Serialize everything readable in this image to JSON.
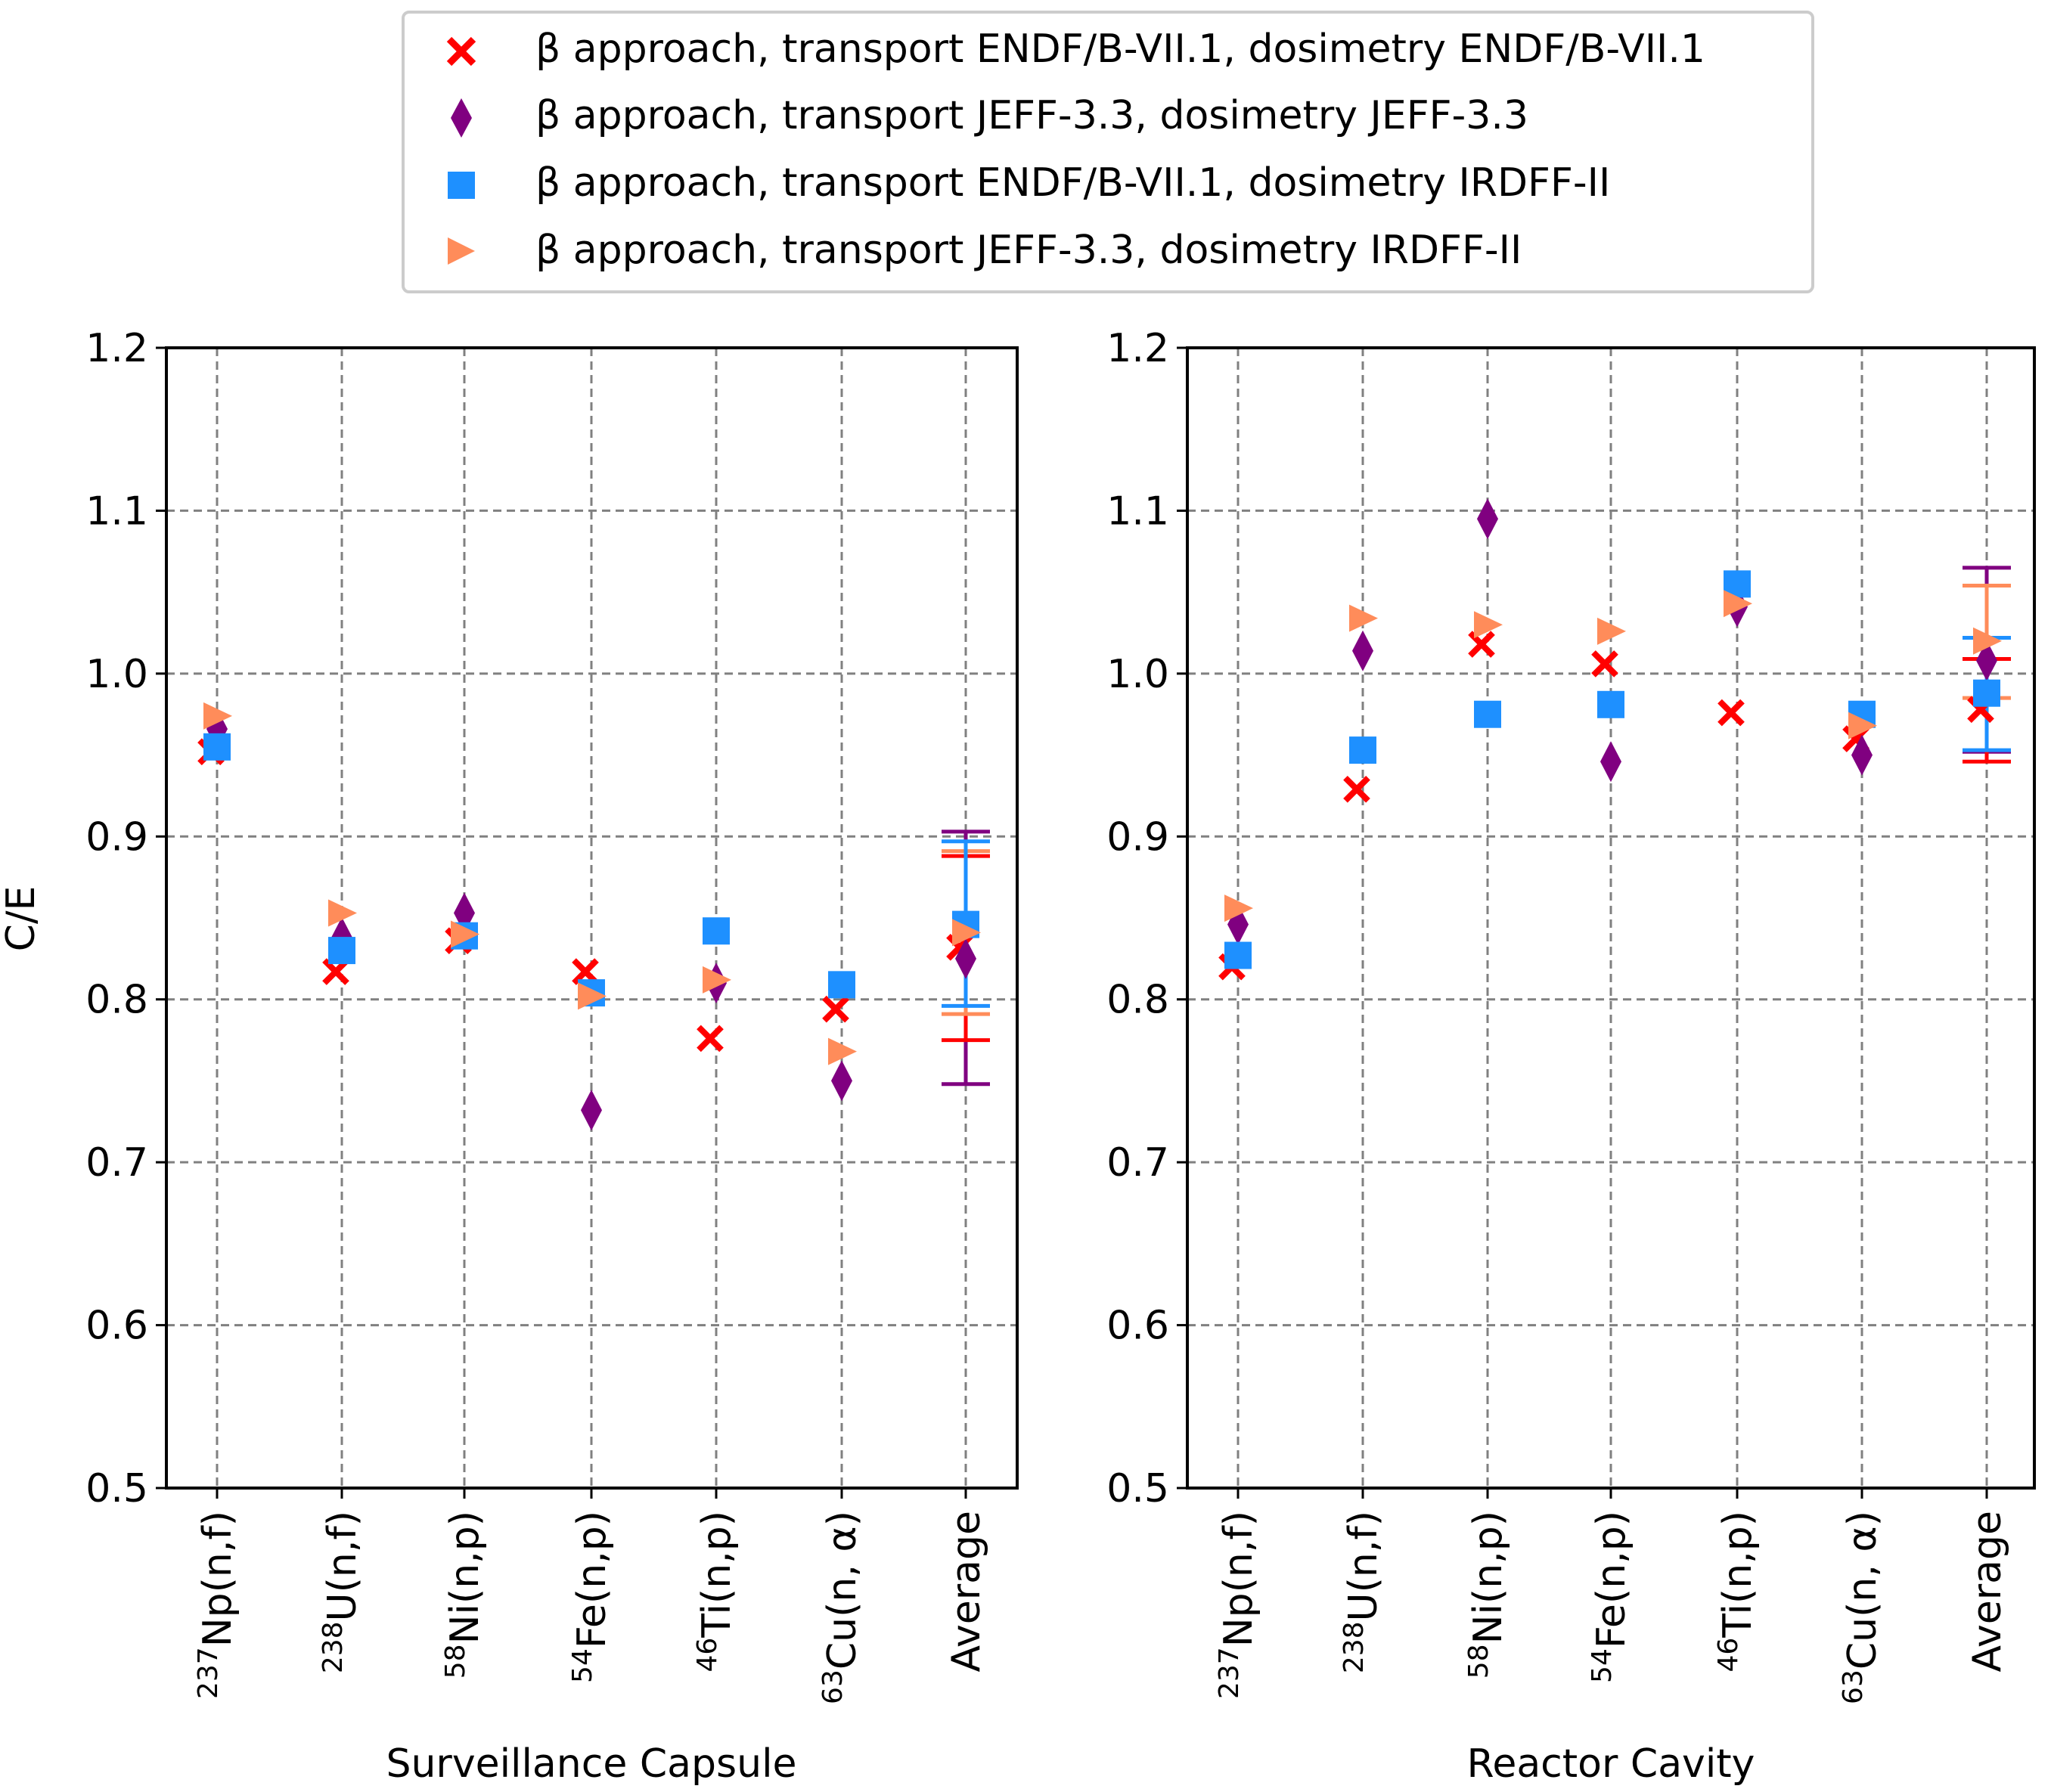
{
  "legend": {
    "entries": [
      {
        "label": "β approach, transport ENDF/B-VII.1, dosimetry ENDF/B-VII.1",
        "marker": "x-icon",
        "color": "#ff0000"
      },
      {
        "label": "β approach, transport JEFF-3.3, dosimetry JEFF-3.3",
        "marker": "diamond-icon",
        "color": "#800080"
      },
      {
        "label": "β approach, transport ENDF/B-VII.1, dosimetry IRDFF-II",
        "marker": "square-icon",
        "color": "#1e90ff"
      },
      {
        "label": "β approach, transport JEFF-3.3, dosimetry IRDFF-II",
        "marker": "triangle-right-icon",
        "color": "#ff8c5a"
      }
    ]
  },
  "chart_data": [
    {
      "type": "scatter",
      "title": "",
      "xlabel": "Surveillance Capsule",
      "ylabel": "C/E",
      "ylim": [
        0.5,
        1.2
      ],
      "yticks": [
        "0.5",
        "0.6",
        "0.7",
        "0.8",
        "0.9",
        "1.0",
        "1.1",
        "1.2"
      ],
      "grid": true,
      "categories": [
        {
          "mass": "237",
          "rest": "Np(n,f)"
        },
        {
          "mass": "238",
          "rest": "U(n,f)"
        },
        {
          "mass": "58",
          "rest": "Ni(n,p)"
        },
        {
          "mass": "54",
          "rest": "Fe(n,p)"
        },
        {
          "mass": "46",
          "rest": "Ti(n,p)"
        },
        {
          "mass": "63",
          "rest": "Cu(n, α)"
        },
        {
          "mass": "",
          "rest": "Average"
        }
      ],
      "series": [
        {
          "name": "β approach, transport ENDF/B-VII.1, dosimetry ENDF/B-VII.1",
          "marker": "x",
          "color": "#ff0000",
          "values": [
            0.952,
            0.817,
            0.836,
            0.817,
            0.776,
            0.794,
            0.832
          ],
          "err_low": 0.775,
          "err_high": 0.888
        },
        {
          "name": "β approach, transport JEFF-3.3, dosimetry JEFF-3.3",
          "marker": "diamond",
          "color": "#800080",
          "values": [
            0.966,
            0.838,
            0.853,
            0.732,
            0.81,
            0.75,
            0.825
          ],
          "err_low": 0.748,
          "err_high": 0.903
        },
        {
          "name": "β approach, transport ENDF/B-VII.1, dosimetry IRDFF-II",
          "marker": "square",
          "color": "#1e90ff",
          "values": [
            0.955,
            0.83,
            0.839,
            0.804,
            0.842,
            0.809,
            0.846
          ],
          "err_low": 0.796,
          "err_high": 0.897
        },
        {
          "name": "β approach, transport JEFF-3.3, dosimetry IRDFF-II",
          "marker": "triangle-right",
          "color": "#ff8c5a",
          "values": [
            0.974,
            0.853,
            0.84,
            0.802,
            0.812,
            0.768,
            0.841
          ],
          "err_low": 0.791,
          "err_high": 0.891
        }
      ]
    },
    {
      "type": "scatter",
      "title": "",
      "xlabel": "Reactor Cavity",
      "ylabel": "",
      "ylim": [
        0.5,
        1.2
      ],
      "yticks": [
        "0.5",
        "0.6",
        "0.7",
        "0.8",
        "0.9",
        "1.0",
        "1.1",
        "1.2"
      ],
      "grid": true,
      "categories": [
        {
          "mass": "237",
          "rest": "Np(n,f)"
        },
        {
          "mass": "238",
          "rest": "U(n,f)"
        },
        {
          "mass": "58",
          "rest": "Ni(n,p)"
        },
        {
          "mass": "54",
          "rest": "Fe(n,p)"
        },
        {
          "mass": "46",
          "rest": "Ti(n,p)"
        },
        {
          "mass": "63",
          "rest": "Cu(n, α)"
        },
        {
          "mass": "",
          "rest": "Average"
        }
      ],
      "series": [
        {
          "name": "β approach, transport ENDF/B-VII.1, dosimetry ENDF/B-VII.1",
          "marker": "x",
          "color": "#ff0000",
          "values": [
            0.82,
            0.929,
            1.018,
            1.006,
            0.976,
            0.96,
            0.978
          ],
          "err_low": 0.946,
          "err_high": 1.009
        },
        {
          "name": "β approach, transport JEFF-3.3, dosimetry JEFF-3.3",
          "marker": "diamond",
          "color": "#800080",
          "values": [
            0.846,
            1.014,
            1.095,
            0.946,
            1.041,
            0.95,
            1.008
          ],
          "err_low": 0.952,
          "err_high": 1.065
        },
        {
          "name": "β approach, transport ENDF/B-VII.1, dosimetry IRDFF-II",
          "marker": "square",
          "color": "#1e90ff",
          "values": [
            0.827,
            0.953,
            0.975,
            0.981,
            1.055,
            0.975,
            0.988
          ],
          "err_low": 0.953,
          "err_high": 1.022
        },
        {
          "name": "β approach, transport JEFF-3.3, dosimetry IRDFF-II",
          "marker": "triangle-right",
          "color": "#ff8c5a",
          "values": [
            0.856,
            1.034,
            1.03,
            1.026,
            1.043,
            0.968,
            1.02
          ],
          "err_low": 0.985,
          "err_high": 1.054
        }
      ]
    }
  ]
}
